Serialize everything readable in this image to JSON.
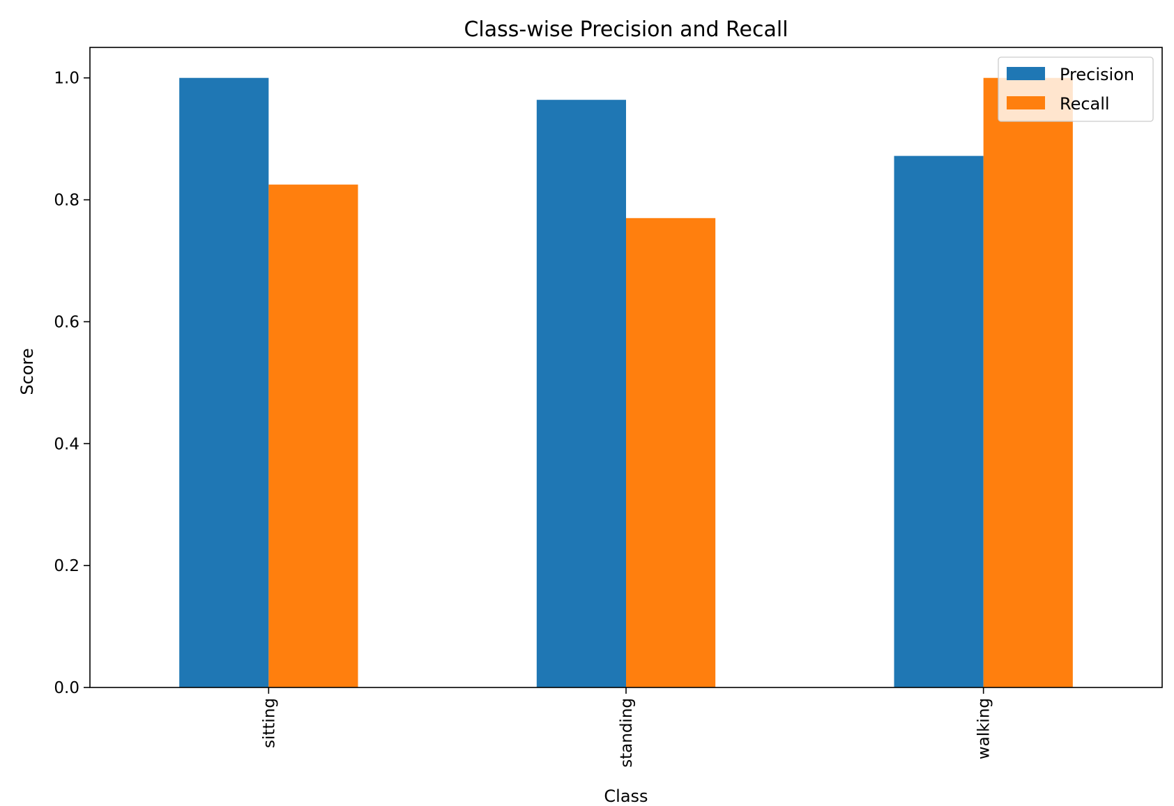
{
  "chart_data": {
    "type": "bar",
    "title": "Class-wise Precision and Recall",
    "xlabel": "Class",
    "ylabel": "Score",
    "categories": [
      "sitting",
      "standing",
      "walking"
    ],
    "series": [
      {
        "name": "Precision",
        "color": "#1f77b4",
        "values": [
          1.0,
          0.964,
          0.872
        ]
      },
      {
        "name": "Recall",
        "color": "#ff7f0e",
        "values": [
          0.825,
          0.77,
          1.0
        ]
      }
    ],
    "ylim": [
      0,
      1.05
    ],
    "yticks": [
      0.0,
      0.2,
      0.4,
      0.6,
      0.8,
      1.0
    ],
    "ytick_labels": [
      "0.0",
      "0.2",
      "0.4",
      "0.6",
      "0.8",
      "1.0"
    ],
    "grid": false,
    "legend": {
      "position": "top-right",
      "entries": [
        "Precision",
        "Recall"
      ]
    }
  }
}
